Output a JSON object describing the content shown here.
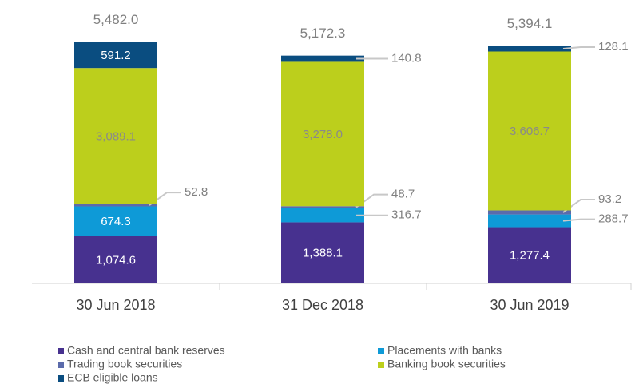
{
  "chart_data": {
    "type": "stacked_bar",
    "categories": [
      "30 Jun 2018",
      "31 Dec 2018",
      "30 Jun 2019"
    ],
    "series": [
      {
        "name": "Cash and central bank reserves",
        "color": "#47318f",
        "values": [
          1074.6,
          1388.1,
          1277.4
        ],
        "value_labels": [
          "1,074.6",
          "1,388.1",
          "1,277.4"
        ]
      },
      {
        "name": "Placements with banks",
        "color": "#0e9ad7",
        "values": [
          674.3,
          316.7,
          288.7
        ]
      },
      {
        "name": "Trading book securities",
        "color": "#5b6bab",
        "values": [
          52.8,
          48.7,
          93.2
        ]
      },
      {
        "name": "Banking book securities",
        "color": "#bccf1c",
        "values": [
          3089.1,
          3278.0,
          3606.7
        ],
        "value_labels": [
          "3,089.1",
          "3,278.0",
          "3,606.7"
        ]
      },
      {
        "name": "ECB eligible loans",
        "color": "#0a4d80",
        "values": [
          591.2,
          140.8,
          128.1
        ]
      }
    ],
    "totals": [
      5482.0,
      5172.3,
      5394.1
    ],
    "total_labels": [
      "5,482.0",
      "5,172.3",
      "5,394.1"
    ],
    "ylim": [
      0,
      6000
    ]
  }
}
